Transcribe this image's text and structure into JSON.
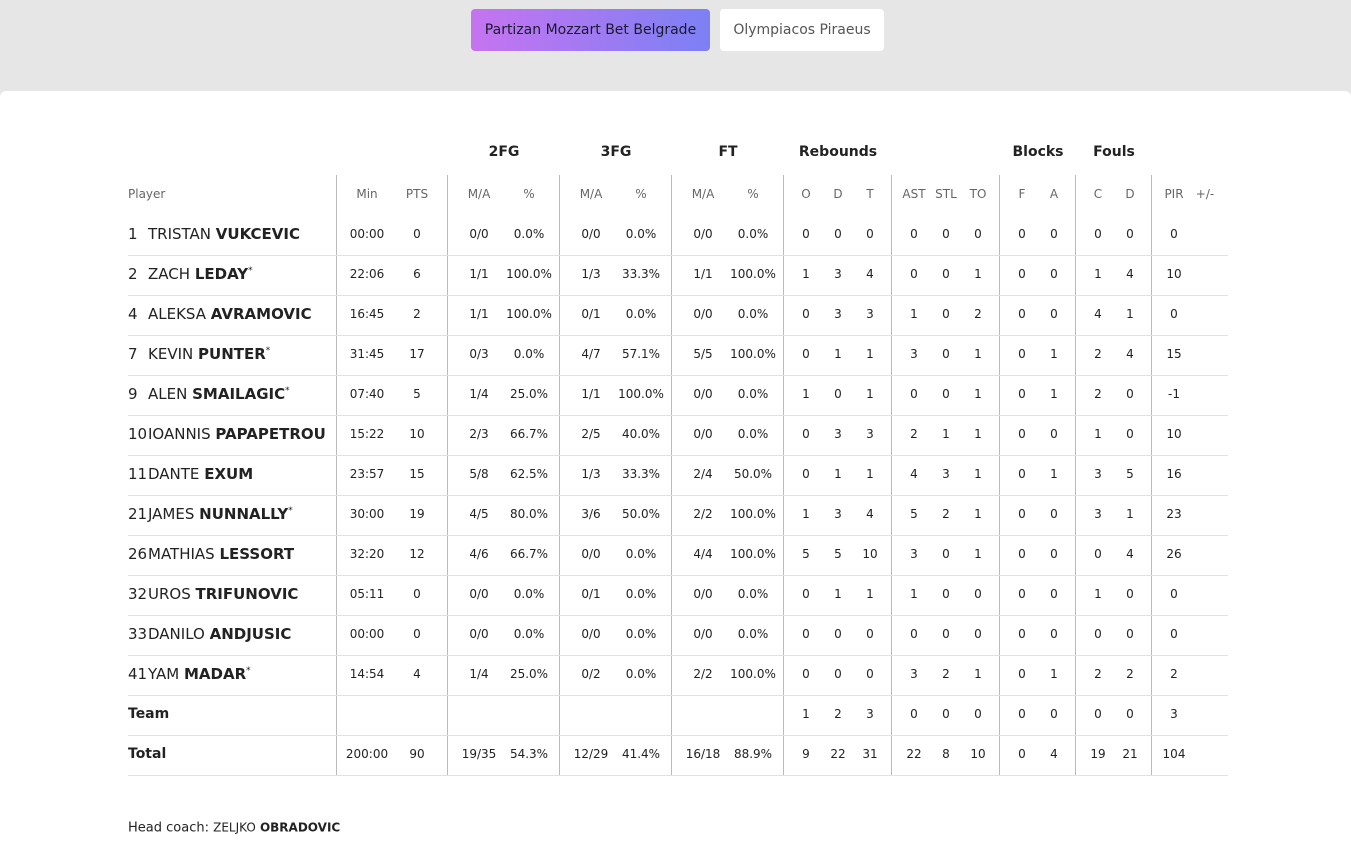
{
  "tabs": [
    "Partizan Mozzart Bet Belgrade",
    "Olympiacos Piraeus"
  ],
  "table": {
    "groups": [
      {
        "label": "2FG",
        "col": 3
      },
      {
        "label": "3FG",
        "col": 5
      },
      {
        "label": "FT",
        "col": 7
      },
      {
        "label": "Rebounds",
        "col": 9
      },
      {
        "label": "Blocks",
        "col": 15
      },
      {
        "label": "Fouls",
        "col": 17
      }
    ],
    "columns": [
      "Player",
      "Min",
      "PTS",
      "M/A",
      "%",
      "M/A",
      "%",
      "M/A",
      "%",
      "O",
      "D",
      "T",
      "AST",
      "STL",
      "TO",
      "F",
      "A",
      "C",
      "D",
      "PIR",
      "+/-"
    ],
    "rows": [
      {
        "number": "1",
        "first": "TRISTAN",
        "last": "VUKCEVIC",
        "cells": [
          "00:00",
          "0",
          "0/0",
          "0.0%",
          "0/0",
          "0.0%",
          "0/0",
          "0.0%",
          "0",
          "0",
          "0",
          "0",
          "0",
          "0",
          "0",
          "0",
          "0",
          "0",
          "0"
        ]
      },
      {
        "number": "2",
        "first": "ZACH",
        "last": "LEDAY",
        "mark": "*",
        "cells": [
          "22:06",
          "6",
          "1/1",
          "100.0%",
          "1/3",
          "33.3%",
          "1/1",
          "100.0%",
          "1",
          "3",
          "4",
          "0",
          "0",
          "1",
          "0",
          "0",
          "1",
          "4",
          "10"
        ]
      },
      {
        "number": "4",
        "first": "ALEKSA",
        "last": "AVRAMOVIC",
        "cells": [
          "16:45",
          "2",
          "1/1",
          "100.0%",
          "0/1",
          "0.0%",
          "0/0",
          "0.0%",
          "0",
          "3",
          "3",
          "1",
          "0",
          "2",
          "0",
          "0",
          "4",
          "1",
          "0"
        ]
      },
      {
        "number": "7",
        "first": "KEVIN",
        "last": "PUNTER",
        "mark": "*",
        "cells": [
          "31:45",
          "17",
          "0/3",
          "0.0%",
          "4/7",
          "57.1%",
          "5/5",
          "100.0%",
          "0",
          "1",
          "1",
          "3",
          "0",
          "1",
          "0",
          "1",
          "2",
          "4",
          "15"
        ]
      },
      {
        "number": "9",
        "first": "ALEN",
        "last": "SMAILAGIC",
        "mark": "*",
        "cells": [
          "07:40",
          "5",
          "1/4",
          "25.0%",
          "1/1",
          "100.0%",
          "0/0",
          "0.0%",
          "1",
          "0",
          "1",
          "0",
          "0",
          "1",
          "0",
          "1",
          "2",
          "0",
          "-1"
        ]
      },
      {
        "number": "10",
        "first": "IOANNIS",
        "last": "PAPAPETROU",
        "cells": [
          "15:22",
          "10",
          "2/3",
          "66.7%",
          "2/5",
          "40.0%",
          "0/0",
          "0.0%",
          "0",
          "3",
          "3",
          "2",
          "1",
          "1",
          "0",
          "0",
          "1",
          "0",
          "10"
        ]
      },
      {
        "number": "11",
        "first": "DANTE",
        "last": "EXUM",
        "cells": [
          "23:57",
          "15",
          "5/8",
          "62.5%",
          "1/3",
          "33.3%",
          "2/4",
          "50.0%",
          "0",
          "1",
          "1",
          "4",
          "3",
          "1",
          "0",
          "1",
          "3",
          "5",
          "16"
        ]
      },
      {
        "number": "21",
        "first": "JAMES",
        "last": "NUNNALLY",
        "mark": "*",
        "cells": [
          "30:00",
          "19",
          "4/5",
          "80.0%",
          "3/6",
          "50.0%",
          "2/2",
          "100.0%",
          "1",
          "3",
          "4",
          "5",
          "2",
          "1",
          "0",
          "0",
          "3",
          "1",
          "23"
        ]
      },
      {
        "number": "26",
        "first": "MATHIAS",
        "last": "LESSORT",
        "cells": [
          "32:20",
          "12",
          "4/6",
          "66.7%",
          "0/0",
          "0.0%",
          "4/4",
          "100.0%",
          "5",
          "5",
          "10",
          "3",
          "0",
          "1",
          "0",
          "0",
          "0",
          "4",
          "26"
        ]
      },
      {
        "number": "32",
        "first": "UROS",
        "last": "TRIFUNOVIC",
        "cells": [
          "05:11",
          "0",
          "0/0",
          "0.0%",
          "0/1",
          "0.0%",
          "0/0",
          "0.0%",
          "0",
          "1",
          "1",
          "1",
          "0",
          "0",
          "0",
          "0",
          "1",
          "0",
          "0"
        ]
      },
      {
        "number": "33",
        "first": "DANILO",
        "last": "ANDJUSIC",
        "cells": [
          "00:00",
          "0",
          "0/0",
          "0.0%",
          "0/0",
          "0.0%",
          "0/0",
          "0.0%",
          "0",
          "0",
          "0",
          "0",
          "0",
          "0",
          "0",
          "0",
          "0",
          "0",
          "0"
        ]
      },
      {
        "number": "41",
        "first": "YAM",
        "last": "MADAR",
        "mark": "*",
        "cells": [
          "14:54",
          "4",
          "1/4",
          "25.0%",
          "0/2",
          "0.0%",
          "2/2",
          "100.0%",
          "0",
          "0",
          "0",
          "3",
          "2",
          "1",
          "0",
          "1",
          "2",
          "2",
          "2"
        ]
      }
    ],
    "team_row": {
      "label": "Team",
      "cells": [
        null,
        null,
        null,
        null,
        null,
        null,
        null,
        null,
        "1",
        "2",
        "3",
        "0",
        "0",
        "0",
        "0",
        "0",
        "0",
        "0",
        "3"
      ]
    },
    "total_row": {
      "label": "Total",
      "cells": [
        "200:00",
        "90",
        "19/35",
        "54.3%",
        "12/29",
        "41.4%",
        "16/18",
        "88.9%",
        "9",
        "22",
        "31",
        "22",
        "8",
        "10",
        "0",
        "4",
        "19",
        "21",
        "104"
      ]
    }
  },
  "coach": {
    "label": "Head coach:",
    "first": "ZELJKO",
    "last": "OBRADOVIC"
  }
}
